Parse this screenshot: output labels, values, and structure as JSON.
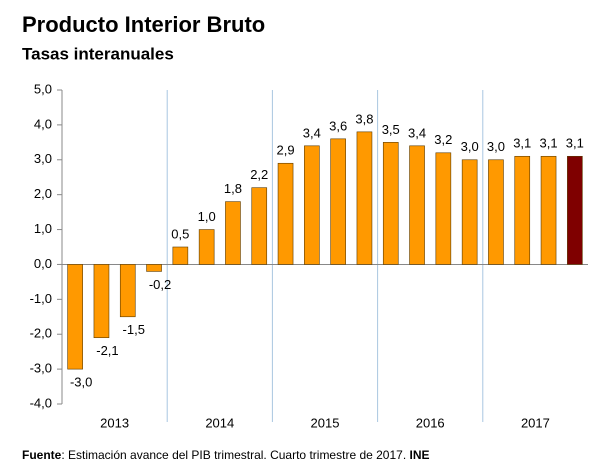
{
  "chart_data": {
    "type": "bar",
    "title": "Producto Interior Bruto",
    "subtitle": "Tasas interanuales",
    "categories": [
      null,
      null,
      null,
      null,
      null,
      null,
      null,
      null,
      null,
      null,
      null,
      null,
      null,
      null,
      null,
      null,
      null,
      null,
      null,
      null
    ],
    "groups": [
      "2013",
      "2014",
      "2015",
      "2016",
      "2017"
    ],
    "values": [
      -3.0,
      -2.1,
      -1.5,
      -0.2,
      0.5,
      1.0,
      1.8,
      2.2,
      2.9,
      3.4,
      3.6,
      3.8,
      3.5,
      3.4,
      3.2,
      3.0,
      3.0,
      3.1,
      3.1,
      3.1
    ],
    "value_labels": [
      "-3,0",
      "-2,1",
      "-1,5",
      "-0,2",
      "0,5",
      "1,0",
      "1,8",
      "2,2",
      "2,9",
      "3,4",
      "3,6",
      "3,8",
      "3,5",
      "3,4",
      "3,2",
      "3,0",
      "3,0",
      "3,1",
      "3,1",
      "3,1"
    ],
    "colors": [
      "#ff9900",
      "#ff9900",
      "#ff9900",
      "#ff9900",
      "#ff9900",
      "#ff9900",
      "#ff9900",
      "#ff9900",
      "#ff9900",
      "#ff9900",
      "#ff9900",
      "#ff9900",
      "#ff9900",
      "#ff9900",
      "#ff9900",
      "#ff9900",
      "#ff9900",
      "#ff9900",
      "#ff9900",
      "#7f0000"
    ],
    "ylim": [
      -4,
      5
    ],
    "yticks": [
      {
        "value": -4,
        "label": "-4,0"
      },
      {
        "value": -3,
        "label": "-3,0"
      },
      {
        "value": -2,
        "label": "-2,0"
      },
      {
        "value": -1,
        "label": "-1,0"
      },
      {
        "value": 0,
        "label": "0,0"
      },
      {
        "value": 1,
        "label": "1,0"
      },
      {
        "value": 2,
        "label": "2,0"
      },
      {
        "value": 3,
        "label": "3,0"
      },
      {
        "value": 4,
        "label": "4,0"
      },
      {
        "value": 5,
        "label": "5,0"
      }
    ],
    "source": {
      "label": "Fuente",
      "text": ": Estimación avance del PIB trimestral. Cuarto trimestre de 2017. ",
      "org": "INE"
    }
  }
}
